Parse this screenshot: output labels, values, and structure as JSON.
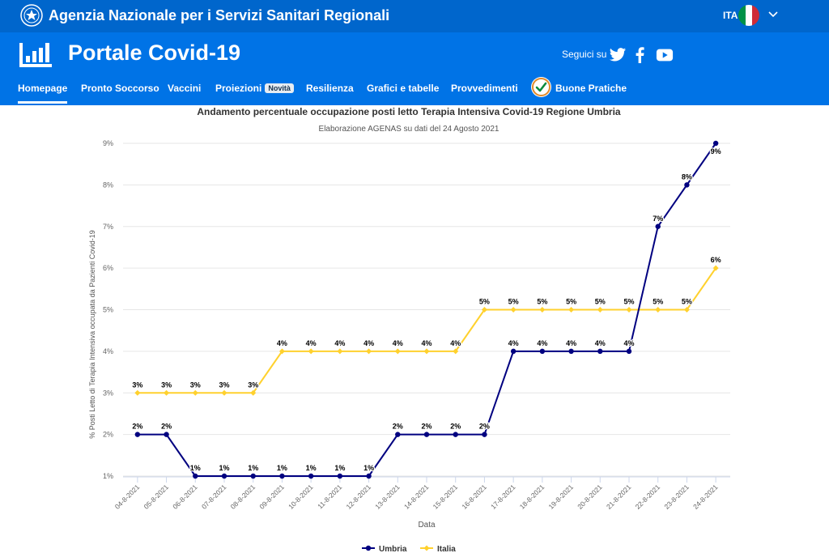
{
  "topbar": {
    "agency_name": "Agenzia Nazionale per i Servizi Sanitari Regionali",
    "language": "ITA"
  },
  "header": {
    "portal_title": "Portale Covid-19",
    "social_label": "Seguici su"
  },
  "nav": {
    "homepage": "Homepage",
    "pronto_soccorso": "Pronto Soccorso",
    "vaccini": "Vaccini",
    "proiezioni": "Proiezioni",
    "novita_badge": "Novità",
    "resilienza": "Resilienza",
    "grafici": "Grafici e tabelle",
    "provvedimenti": "Provvedimenti",
    "buone_pratiche": "Buone Pratiche"
  },
  "colors": {
    "top_bar": "#0066cc",
    "header": "#0073e6",
    "umbria": "#000080",
    "italia": "#ffd12e"
  },
  "chart_data": {
    "type": "line",
    "title": "Andamento percentuale occupazione posti letto Terapia Intensiva Covid-19 Regione Umbria",
    "subtitle": "Elaborazione AGENAS su dati del 24 Agosto 2021",
    "xlabel": "Data",
    "ylabel": "% Posti Letto di Terapia Intensiva occupata da Pazienti Covid-19",
    "categories": [
      "04-8-2021",
      "05-8-2021",
      "06-8-2021",
      "07-8-2021",
      "08-8-2021",
      "09-8-2021",
      "10-8-2021",
      "11-8-2021",
      "12-8-2021",
      "13-8-2021",
      "14-8-2021",
      "15-8-2021",
      "16-8-2021",
      "17-8-2021",
      "18-8-2021",
      "19-8-2021",
      "20-8-2021",
      "21-8-2021",
      "22-8-2021",
      "23-8-2021",
      "24-8-2021"
    ],
    "series": [
      {
        "name": "Umbria",
        "color": "#000080",
        "values": [
          2,
          2,
          1,
          1,
          1,
          1,
          1,
          1,
          1,
          2,
          2,
          2,
          2,
          4,
          4,
          4,
          4,
          4,
          7,
          8,
          9
        ]
      },
      {
        "name": "Italia",
        "color": "#ffd12e",
        "values": [
          3,
          3,
          3,
          3,
          3,
          4,
          4,
          4,
          4,
          4,
          4,
          4,
          5,
          5,
          5,
          5,
          5,
          5,
          5,
          5,
          6
        ]
      }
    ],
    "yticks": [
      "1%",
      "2%",
      "3%",
      "4%",
      "5%",
      "6%",
      "7%",
      "8%",
      "9%"
    ],
    "ylim": [
      1,
      9
    ],
    "value_suffix": "%",
    "grid": true,
    "legend": "bottom-center"
  }
}
